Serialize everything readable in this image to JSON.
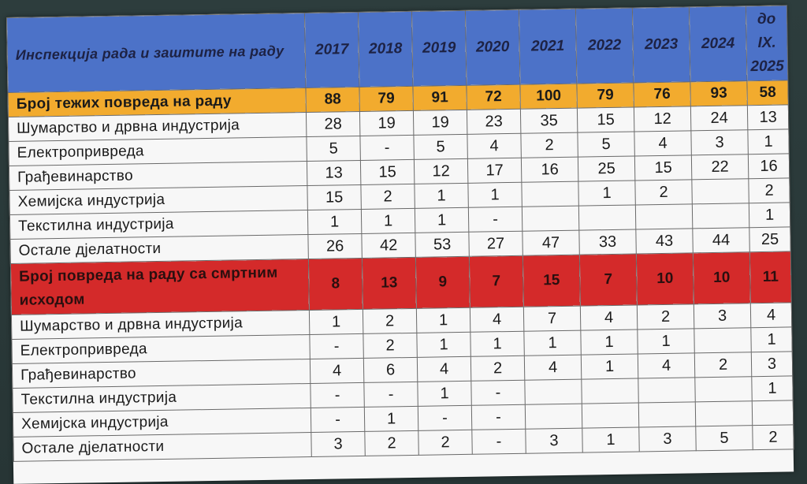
{
  "header": {
    "title": "Инспекција рада и заштите на раду",
    "years": [
      "2017",
      "2018",
      "2019",
      "2020",
      "2021",
      "2022",
      "2023",
      "2024",
      "до IX. 2025"
    ]
  },
  "serious_injuries": {
    "label": "Број тежих повреда на раду",
    "totals": [
      "88",
      "79",
      "91",
      "72",
      "100",
      "79",
      "76",
      "93",
      "58"
    ],
    "rows": [
      {
        "label": "Шумарство и дрвна индустрија",
        "values": [
          "28",
          "19",
          "19",
          "23",
          "35",
          "15",
          "12",
          "24",
          "13"
        ]
      },
      {
        "label": "Електропривреда",
        "values": [
          "5",
          "-",
          "5",
          "4",
          "2",
          "5",
          "4",
          "3",
          "1"
        ]
      },
      {
        "label": "Грађевинарство",
        "values": [
          "13",
          "15",
          "12",
          "17",
          "16",
          "25",
          "15",
          "22",
          "16"
        ]
      },
      {
        "label": "Хемијска индустрија",
        "values": [
          "15",
          "2",
          "1",
          "1",
          "",
          "1",
          "2",
          "",
          "2"
        ]
      },
      {
        "label": "Текстилна индустрија",
        "values": [
          "1",
          "1",
          "1",
          "-",
          "",
          "",
          "",
          "",
          "1"
        ]
      },
      {
        "label": "Остале дјелатности",
        "values": [
          "26",
          "42",
          "53",
          "27",
          "47",
          "33",
          "43",
          "44",
          "25"
        ]
      }
    ]
  },
  "fatal_injuries": {
    "label": "Број повреда на раду са смртним исходом",
    "totals": [
      "8",
      "13",
      "9",
      "7",
      "15",
      "7",
      "10",
      "10",
      "11"
    ],
    "rows": [
      {
        "label": "Шумарство и дрвна индустрија",
        "values": [
          "1",
          "2",
          "1",
          "4",
          "7",
          "4",
          "2",
          "3",
          "4"
        ]
      },
      {
        "label": "Електропривреда",
        "values": [
          "-",
          "2",
          "1",
          "1",
          "1",
          "1",
          "1",
          "",
          "1"
        ]
      },
      {
        "label": "Грађевинарство",
        "values": [
          "4",
          "6",
          "4",
          "2",
          "4",
          "1",
          "4",
          "2",
          "3"
        ]
      },
      {
        "label": "Текстилна индустрија",
        "values": [
          "-",
          "-",
          "1",
          "-",
          "",
          "",
          "",
          "",
          "1"
        ]
      },
      {
        "label": "Хемијска индустрија",
        "values": [
          "-",
          "1",
          "-",
          "-",
          "",
          "",
          "",
          "",
          ""
        ]
      },
      {
        "label": "Остале дјелатности",
        "values": [
          "3",
          "2",
          "2",
          "-",
          "3",
          "1",
          "3",
          "5",
          "2"
        ]
      }
    ]
  }
}
